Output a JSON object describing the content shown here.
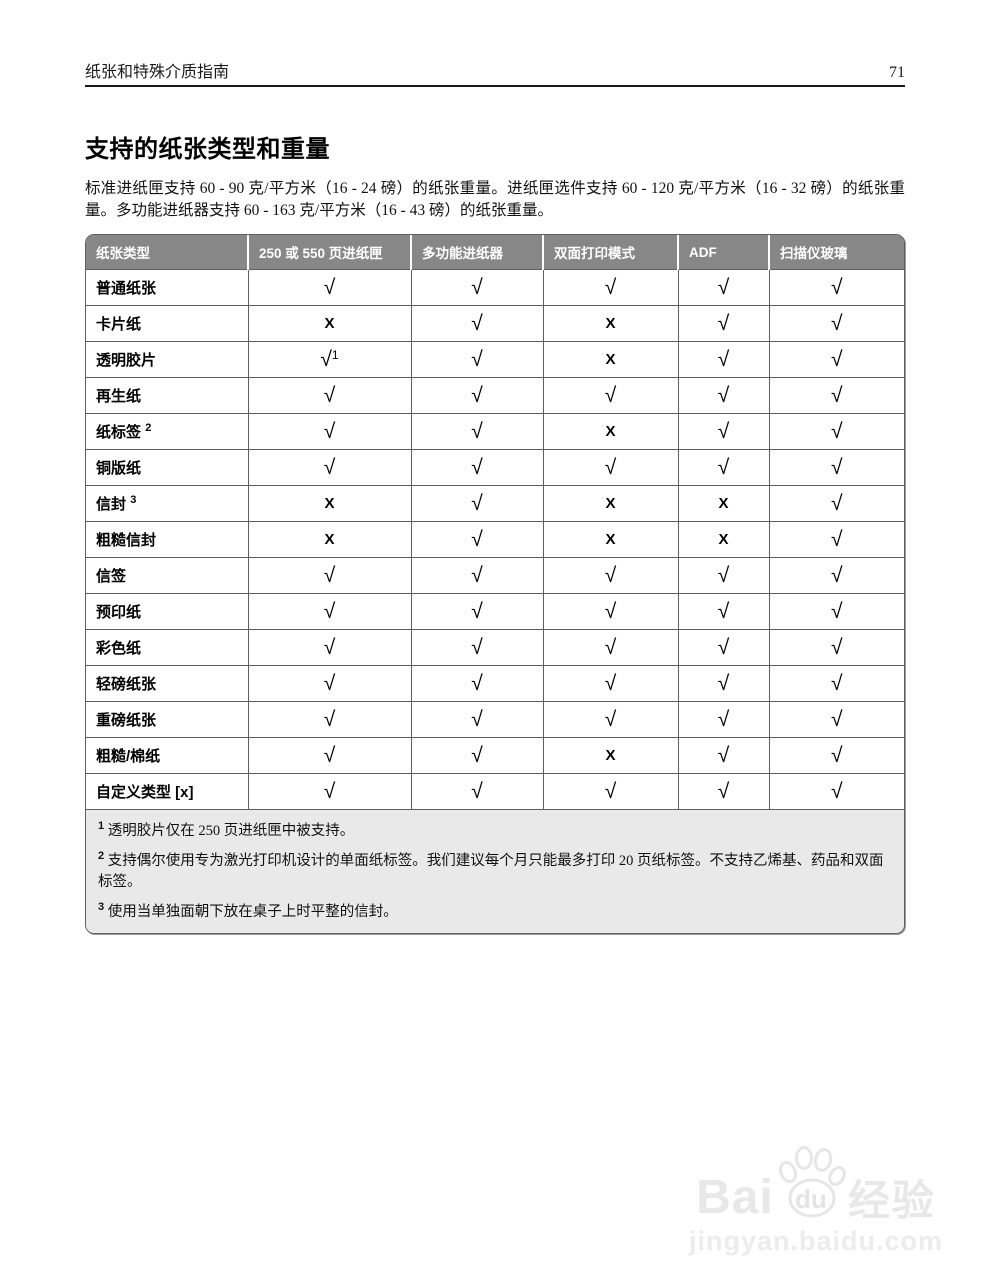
{
  "header": {
    "doc_title": "纸张和特殊介质指南",
    "page_number": "71"
  },
  "section": {
    "title": "支持的纸张类型和重量",
    "intro": "标准进纸匣支持 60 - 90 克/平方米（16 - 24 磅）的纸张重量。进纸匣选件支持 60 - 120 克/平方米（16 - 32 磅）的纸张重量。多功能进纸器支持 60 - 163 克/平方米（16 - 43 磅）的纸张重量。"
  },
  "table": {
    "columns": [
      "纸张类型",
      "250 或 550 页进纸匣",
      "多功能进纸器",
      "双面打印模式",
      "ADF",
      "扫描仪玻璃"
    ],
    "check_glyph": "√",
    "x_glyph": "X",
    "rows": [
      {
        "label": "普通纸张",
        "values": [
          "√",
          "√",
          "√",
          "√",
          "√"
        ]
      },
      {
        "label": "卡片纸",
        "values": [
          "X",
          "√",
          "X",
          "√",
          "√"
        ]
      },
      {
        "label": "透明胶片",
        "values": [
          "√",
          "√",
          "X",
          "√",
          "√"
        ],
        "value_sups": {
          "0": "1"
        }
      },
      {
        "label": "再生纸",
        "values": [
          "√",
          "√",
          "√",
          "√",
          "√"
        ]
      },
      {
        "label": "纸标签",
        "label_sup": "2",
        "values": [
          "√",
          "√",
          "X",
          "√",
          "√"
        ]
      },
      {
        "label": "铜版纸",
        "values": [
          "√",
          "√",
          "√",
          "√",
          "√"
        ]
      },
      {
        "label": "信封",
        "label_sup": "3",
        "values": [
          "X",
          "√",
          "X",
          "X",
          "√"
        ]
      },
      {
        "label": "粗糙信封",
        "values": [
          "X",
          "√",
          "X",
          "X",
          "√"
        ]
      },
      {
        "label": "信签",
        "values": [
          "√",
          "√",
          "√",
          "√",
          "√"
        ]
      },
      {
        "label": "预印纸",
        "values": [
          "√",
          "√",
          "√",
          "√",
          "√"
        ]
      },
      {
        "label": "彩色纸",
        "values": [
          "√",
          "√",
          "√",
          "√",
          "√"
        ]
      },
      {
        "label": "轻磅纸张",
        "values": [
          "√",
          "√",
          "√",
          "√",
          "√"
        ]
      },
      {
        "label": "重磅纸张",
        "values": [
          "√",
          "√",
          "√",
          "√",
          "√"
        ]
      },
      {
        "label": "粗糙/棉纸",
        "values": [
          "√",
          "√",
          "X",
          "√",
          "√"
        ]
      },
      {
        "label": "自定义类型 [x]",
        "values": [
          "√",
          "√",
          "√",
          "√",
          "√"
        ]
      }
    ],
    "footnotes": [
      {
        "sup": "1",
        "text": "透明胶片仅在 250 页进纸匣中被支持。"
      },
      {
        "sup": "2",
        "text": "支持偶尔使用专为激光打印机设计的单面纸标签。我们建议每个月只能最多打印 20 页纸标签。不支持乙烯基、药品和双面标签。"
      },
      {
        "sup": "3",
        "text": "使用当单独面朝下放在桌子上时平整的信封。"
      }
    ]
  },
  "watermark": {
    "bai": "Bai",
    "du": "du",
    "cn": "经验",
    "url": "jingyan.baidu.com",
    "paw_icon": "baidu-paw-icon"
  },
  "colors": {
    "table_header_bg": "#878787",
    "table_header_text": "#ffffff",
    "table_border": "#5f5f5f",
    "footnote_bg": "#e9e9e9",
    "watermark": "#e8e8e8",
    "page_bg": "#ffffff"
  }
}
